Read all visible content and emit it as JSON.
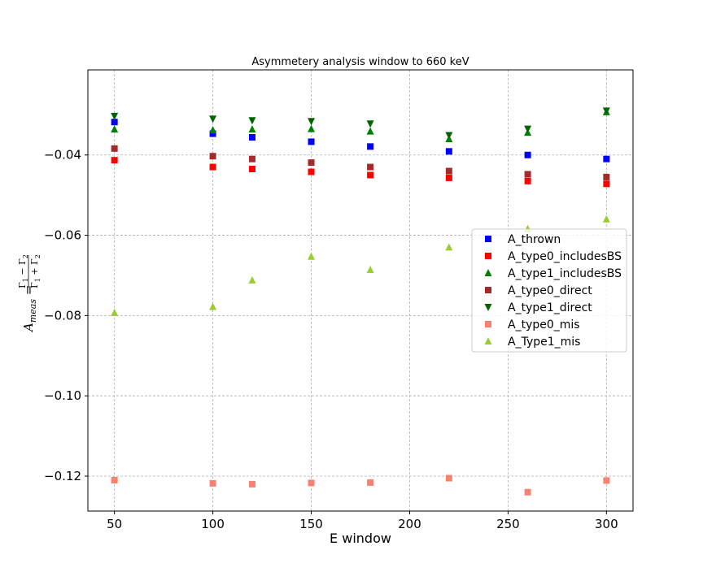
{
  "chart_data": {
    "type": "scatter",
    "title": "Asymmetery analysis window to 660 keV",
    "xlabel": "E window",
    "ylabel": "A_meas = (Γ1 − Γ2)/(Γ1 + Γ2)",
    "xlim": [
      36.5,
      313.5
    ],
    "ylim": [
      -0.1287,
      -0.0188
    ],
    "xticks": [
      50,
      100,
      150,
      200,
      250,
      300
    ],
    "yticks": [
      -0.12,
      -0.1,
      -0.08,
      -0.06,
      -0.04
    ],
    "xtick_labels": [
      "50",
      "100",
      "150",
      "200",
      "250",
      "300"
    ],
    "ytick_labels": [
      "−0.12",
      "−0.10",
      "−0.08",
      "−0.06",
      "−0.04"
    ],
    "grid": true,
    "legend_position": "right",
    "x": [
      50,
      100,
      120,
      150,
      180,
      220,
      260,
      300
    ],
    "series": [
      {
        "name": "A_thrown",
        "color": "#0000ff",
        "marker": "square",
        "values": [
          -0.0318,
          -0.0347,
          -0.0356,
          -0.0367,
          -0.0379,
          -0.0391,
          -0.04,
          -0.041
        ]
      },
      {
        "name": "A_type0_includesBS",
        "color": "#ff0000",
        "marker": "square",
        "values": [
          -0.0413,
          -0.043,
          -0.0435,
          -0.0442,
          -0.045,
          -0.0457,
          -0.0465,
          -0.0472
        ]
      },
      {
        "name": "A_type1_includesBS",
        "color": "#008000",
        "marker": "triangle-up",
        "values": [
          -0.0336,
          -0.0338,
          -0.0336,
          -0.0335,
          -0.0341,
          -0.036,
          -0.0344,
          -0.0293
        ]
      },
      {
        "name": "A_type0_direct",
        "color": "#a52a2a",
        "marker": "square",
        "values": [
          -0.0384,
          -0.0403,
          -0.041,
          -0.0419,
          -0.043,
          -0.044,
          -0.0448,
          -0.0455
        ]
      },
      {
        "name": "A_type1_direct",
        "color": "#006400",
        "marker": "triangle-down",
        "values": [
          -0.0303,
          -0.031,
          -0.0314,
          -0.0316,
          -0.0322,
          -0.0351,
          -0.0335,
          -0.029
        ]
      },
      {
        "name": "A_type0_mis",
        "color": "#fa8072",
        "marker": "square",
        "values": [
          -0.121,
          -0.1218,
          -0.122,
          -0.1217,
          -0.1216,
          -0.1205,
          -0.124,
          -0.1211
        ]
      },
      {
        "name": "A_Type1_mis",
        "color": "#9acd32",
        "marker": "triangle-up",
        "values": [
          -0.0793,
          -0.0778,
          -0.0712,
          -0.0653,
          -0.0686,
          -0.063,
          -0.0584,
          -0.056
        ]
      }
    ]
  }
}
